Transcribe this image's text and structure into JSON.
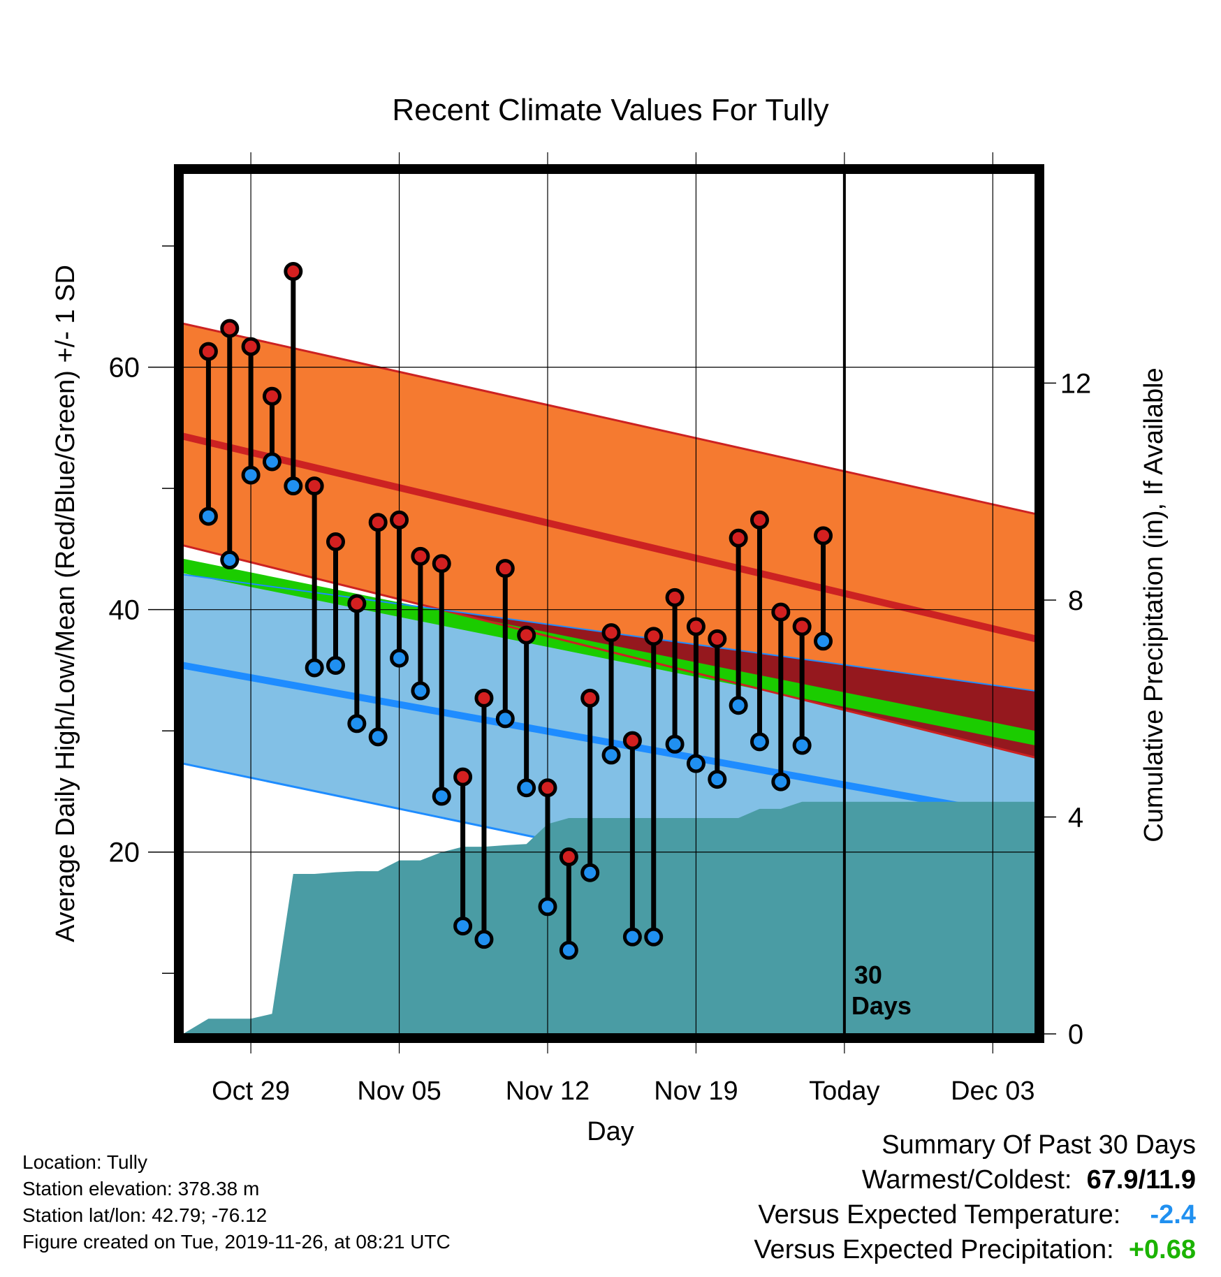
{
  "chart_data": {
    "type": "line",
    "title": "Recent Climate Values For Tully",
    "xlabel": "Day",
    "ylabel_left": "Average Daily High/Low/Mean (Red/Blue/Green) +/- 1 SD",
    "ylabel_right": "Cumulative Precipitation (in), If Available",
    "x_ticks": [
      "Oct 29",
      "Nov 05",
      "Nov 12",
      "Nov 19",
      "Today",
      "Dec 03"
    ],
    "y_ticks_left": [
      20,
      40,
      60
    ],
    "y_ticks_right": [
      0,
      4,
      8,
      12
    ],
    "today_label": "30\nDays",
    "colors": {
      "high_band": "#f57a30",
      "high_line": "#cc2222",
      "low_band": "#82c0e6",
      "low_line": "#1e8cff",
      "mean_band": "#1bcc00",
      "precip": "#4a9ca4",
      "overlap": "#95181e",
      "high_marker": "#d32020",
      "low_marker": "#2090f0"
    },
    "normals": {
      "x": [
        -3.2,
        37.0
      ],
      "high_mean": [
        54.3,
        37.6
      ],
      "high_upper": [
        63.6,
        47.9
      ],
      "high_lower": [
        45.3,
        27.8
      ],
      "low_mean": [
        35.4,
        22.7
      ],
      "low_upper": [
        42.9,
        33.3
      ],
      "low_lower": [
        27.3,
        12.6
      ],
      "mean_upper": [
        44.2,
        30.0
      ],
      "mean_lower": [
        43.0,
        28.8
      ]
    },
    "daily": {
      "day": [
        -2,
        -1,
        0,
        1,
        2,
        3,
        4,
        5,
        6,
        7,
        8,
        9,
        10,
        11,
        12,
        13,
        14,
        15,
        16,
        17,
        18,
        19,
        20,
        21,
        22,
        23,
        24,
        25,
        26,
        27,
        28
      ],
      "high": [
        61.3,
        63.2,
        61.7,
        57.6,
        67.9,
        50.2,
        45.6,
        40.5,
        47.2,
        47.4,
        44.4,
        43.8,
        26.2,
        32.7,
        43.4,
        37.9,
        25.3,
        19.6,
        32.7,
        38.1,
        29.2,
        37.8,
        41.0,
        38.6,
        37.6,
        45.9,
        47.4,
        39.8,
        38.6,
        46.1,
        null
      ],
      "low": [
        47.7,
        44.1,
        51.1,
        52.2,
        50.2,
        35.2,
        35.4,
        30.6,
        29.5,
        36.0,
        33.3,
        24.6,
        13.9,
        12.8,
        31.0,
        25.3,
        15.5,
        11.9,
        18.3,
        28.0,
        13.0,
        13.0,
        28.9,
        27.3,
        26.0,
        32.1,
        29.1,
        25.8,
        28.8,
        37.4,
        null
      ]
    },
    "precip": {
      "day": [
        -3.2,
        -2,
        -1,
        0,
        1,
        2,
        3,
        4,
        5,
        6,
        7,
        8,
        9,
        10,
        11,
        12,
        13,
        14,
        15,
        16,
        17,
        18,
        19,
        20,
        21,
        22,
        23,
        24,
        25,
        26,
        27,
        28,
        37.0
      ],
      "cum": [
        0.0,
        0.28,
        0.28,
        0.28,
        0.37,
        2.95,
        2.95,
        2.98,
        3.0,
        3.0,
        3.2,
        3.2,
        3.35,
        3.45,
        3.45,
        3.48,
        3.5,
        3.87,
        3.98,
        3.98,
        3.98,
        3.98,
        3.98,
        3.98,
        3.98,
        3.98,
        3.98,
        4.15,
        4.15,
        4.28,
        4.28,
        4.28,
        4.28
      ]
    },
    "xlim": [
      -3.2,
      37.0
    ],
    "ylim_left": [
      5,
      76
    ],
    "ylim_right": [
      0,
      15.87
    ],
    "grid": true,
    "legend": "none"
  },
  "footer": {
    "location": "Location: Tully",
    "elevation": "Station elevation: 378.38 m",
    "latlon": "Station lat/lon: 42.79; -76.12",
    "created": "Figure created on Tue, 2019-11-26, at 08:21 UTC"
  },
  "summary": {
    "title": "Summary Of Past 30 Days",
    "warmest_label": "Warmest/Coldest:",
    "warmest_value": "67.9/11.9",
    "temp_label": "Versus Expected Temperature:",
    "temp_value": "-2.4",
    "temp_color": "#2090f0",
    "precip_label": "Versus Expected Precipitation:",
    "precip_value": "+0.68",
    "precip_color": "#1bb300"
  }
}
